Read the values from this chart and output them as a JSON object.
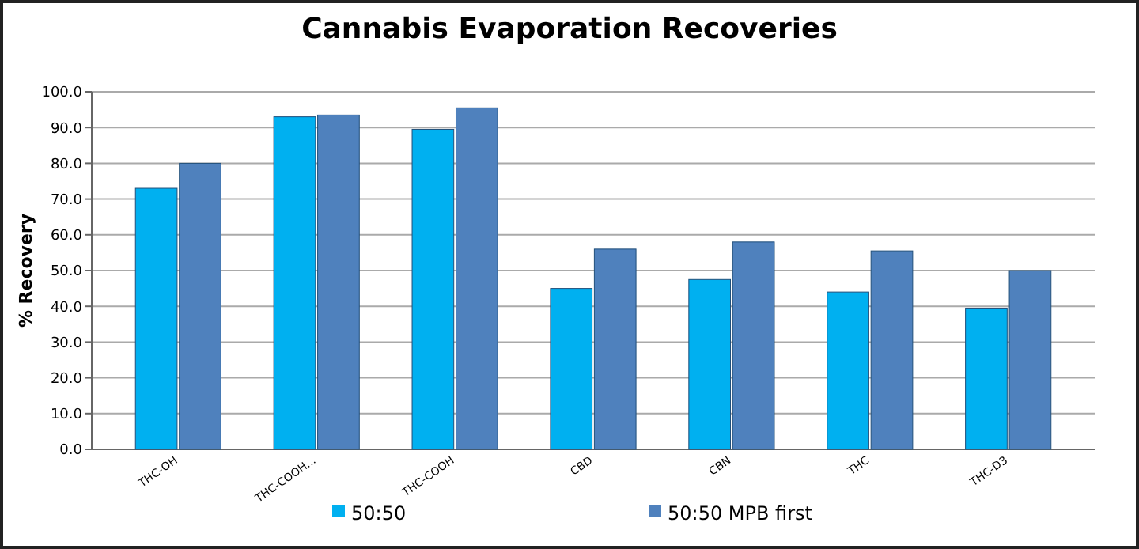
{
  "chart_data": {
    "type": "bar",
    "title": "Cannabis Evaporation Recoveries",
    "ylabel": "% Recovery",
    "categories": [
      "THC-OH",
      "THC-COOH...",
      "THC-COOH",
      "CBD",
      "CBN",
      "THC",
      "THC-D3"
    ],
    "series": [
      {
        "name": "50:50",
        "color": "#00b0f0",
        "values": [
          73,
          93,
          89.5,
          45,
          47.5,
          44,
          39.5
        ]
      },
      {
        "name": "50:50 MPB first",
        "color": "#4f81bd",
        "values": [
          80,
          93.5,
          95.5,
          56,
          58,
          55.5,
          50
        ]
      }
    ],
    "ylim": [
      0,
      100
    ],
    "yticks": [
      {
        "value": 0,
        "label": "0.0"
      },
      {
        "value": 10,
        "label": "10.0"
      },
      {
        "value": 20,
        "label": "20.0"
      },
      {
        "value": 30,
        "label": "30.0"
      },
      {
        "value": 40,
        "label": "40.0"
      },
      {
        "value": 50,
        "label": "50.0"
      },
      {
        "value": 60,
        "label": "60.0"
      },
      {
        "value": 70,
        "label": "70.0"
      },
      {
        "value": 80,
        "label": "80.0"
      },
      {
        "value": 90,
        "label": "90.0"
      },
      {
        "value": 100,
        "label": "100.0"
      }
    ],
    "grid": "y",
    "legend": "bottom"
  }
}
